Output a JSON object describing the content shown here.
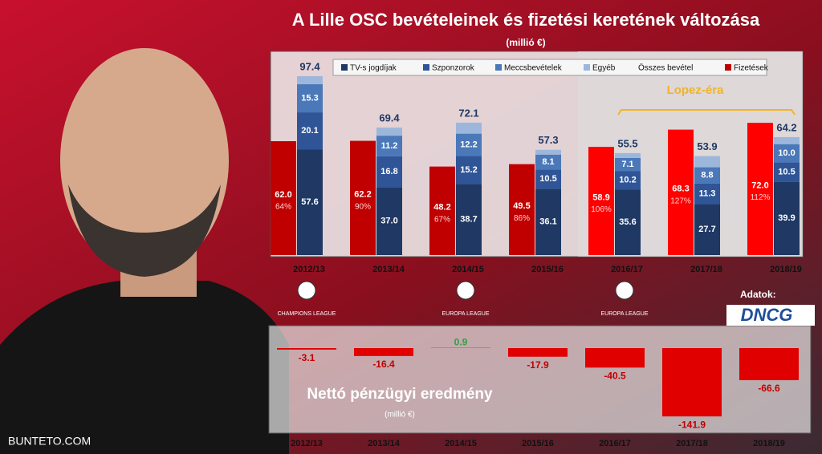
{
  "title": "A Lille OSC bevételeinek és fizetési keretének változása",
  "subtitle": "(millió €)",
  "credit": "BUNTETO.COM",
  "source_label": "Adatok:",
  "source": "DNCG",
  "chart_data": [
    {
      "type": "bar",
      "categories": [
        "2012/13",
        "2013/14",
        "2014/15",
        "2015/16",
        "2016/17",
        "2017/18",
        "2018/19"
      ],
      "competition_labels": [
        "CHAMPIONS LEAGUE",
        null,
        "EUROPA LEAGUE",
        null,
        "EUROPA LEAGUE",
        null,
        null
      ],
      "annotation": "Lopez-éra",
      "ylim": [
        0,
        100
      ],
      "series": [
        {
          "name": "TV-s jogdíjak",
          "color": "#1f3864",
          "values": [
            57.6,
            37.0,
            38.7,
            36.1,
            35.6,
            27.7,
            39.9
          ],
          "value_labels": [
            "57.6",
            "37.0",
            "38.7",
            "36.1",
            "35.6",
            "27.7",
            "39.9"
          ]
        },
        {
          "name": "Szponzorok",
          "color": "#2f5597",
          "values": [
            20.1,
            16.8,
            15.2,
            10.5,
            10.2,
            11.3,
            10.5
          ]
        },
        {
          "name": "Meccsbevételek",
          "color": "#4a78b8",
          "values": [
            15.3,
            11.2,
            12.2,
            8.1,
            7.1,
            8.8,
            10.0
          ],
          "value_labels": [
            "15.3",
            "11.2",
            "12.2",
            "8.1",
            "7.1",
            "8.8",
            "10.0"
          ]
        },
        {
          "name": "Egyéb",
          "color": "#9db7dc",
          "values": [
            4.4,
            4.4,
            6.0,
            2.6,
            2.6,
            6.1,
            3.8
          ]
        }
      ],
      "totals": {
        "name": "Összes bevétel",
        "color": "#1f3864",
        "values": [
          97.4,
          69.4,
          72.1,
          57.3,
          55.5,
          53.9,
          64.2
        ]
      },
      "salaries": {
        "name": "Fizetések",
        "colors": [
          "#c00000",
          "#c00000",
          "#c00000",
          "#c00000",
          "#ff0000",
          "#ff0000",
          "#ff0000"
        ],
        "values": [
          62.0,
          62.2,
          48.2,
          49.5,
          58.9,
          68.3,
          72.0
        ],
        "value_labels": [
          "62.0",
          "62.2",
          "48.2",
          "49.5",
          "58.9",
          "68.3",
          "72.0"
        ],
        "ratios": [
          64,
          90,
          67,
          86,
          106,
          127,
          112
        ],
        "ratio_labels": [
          "64%",
          "90%",
          "67%",
          "86%",
          "106%",
          "127%",
          "112%"
        ]
      }
    },
    {
      "type": "bar",
      "title": "Nettó pénzügyi eredmény",
      "subtitle": "(millió €)",
      "categories": [
        "2012/13",
        "2013/14",
        "2014/15",
        "2015/16",
        "2016/17",
        "2017/18",
        "2018/19"
      ],
      "values": [
        -3.1,
        -16.4,
        0.9,
        -17.9,
        -40.5,
        -141.9,
        -66.6
      ],
      "color": "#e00000",
      "positive_color": "#2ea043",
      "ylim": [
        -150,
        45
      ]
    }
  ]
}
